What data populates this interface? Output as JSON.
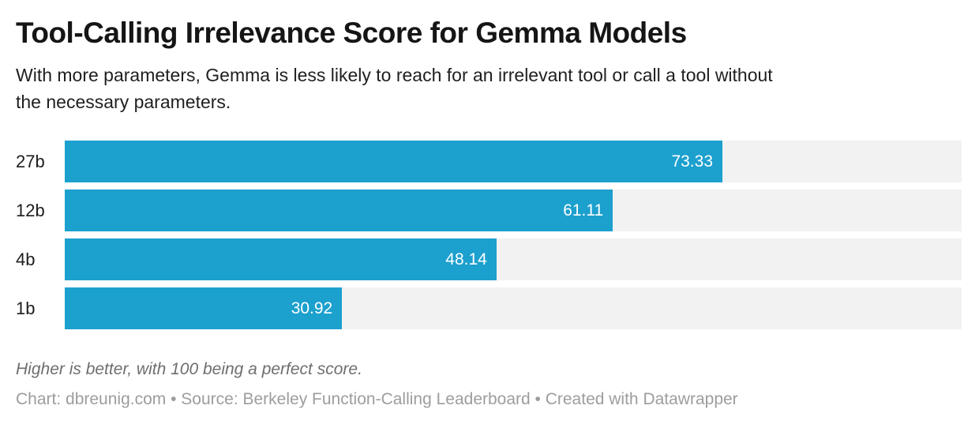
{
  "header": {
    "title": "Tool-Calling Irrelevance Score for Gemma Models",
    "subtitle_line1": "With more parameters, Gemma is less likely to reach for an irrelevant tool or call a tool without",
    "subtitle_line2": "the necessary parameters."
  },
  "chart_data": {
    "type": "bar",
    "orientation": "horizontal",
    "title": "Tool-Calling Irrelevance Score for Gemma Models",
    "categories": [
      "27b",
      "12b",
      "4b",
      "1b"
    ],
    "values": [
      73.33,
      61.11,
      48.14,
      30.92
    ],
    "value_labels": [
      "73.33",
      "61.11",
      "48.14",
      "30.92"
    ],
    "xlim": [
      0,
      100
    ],
    "xlabel": "",
    "ylabel": "",
    "grid": false,
    "legend": false,
    "bar_color": "#1ca0ce",
    "track_color": "#f2f2f2",
    "value_label_color": "#ffffff"
  },
  "footer": {
    "note": "Higher is better, with 100 being a perfect score.",
    "byline": "Chart: dbreunig.com • Source: Berkeley Function-Calling Leaderboard • Created with Datawrapper"
  }
}
